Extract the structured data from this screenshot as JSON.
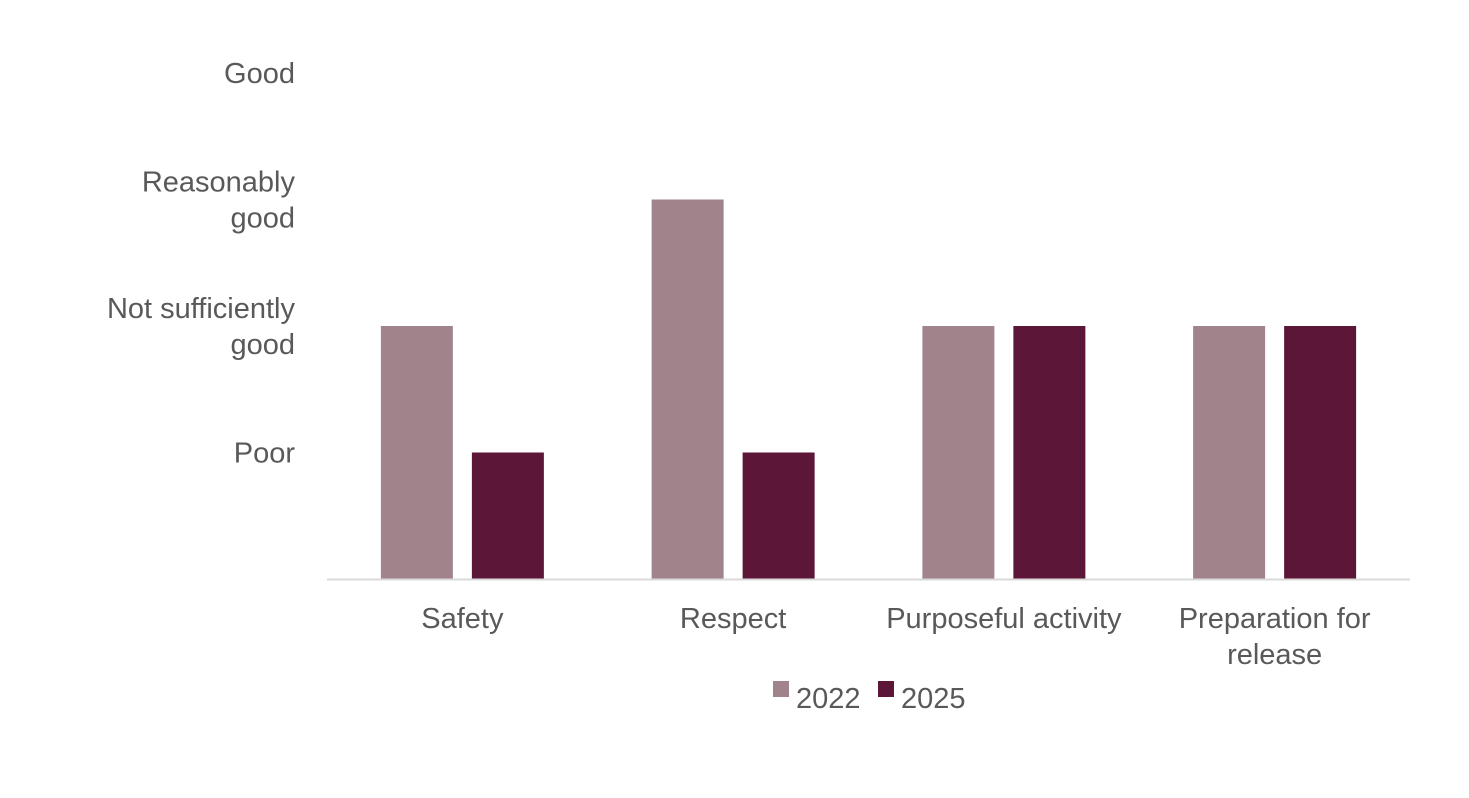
{
  "chart_data": {
    "type": "bar",
    "title": "",
    "xlabel": "",
    "ylabel": "",
    "categories": [
      "Safety",
      "Respect",
      "Purposeful activity",
      "Preparation for release"
    ],
    "category_lines": [
      [
        "Safety"
      ],
      [
        "Respect"
      ],
      [
        "Purposeful activity"
      ],
      [
        "Preparation for",
        "release"
      ]
    ],
    "y_levels": [
      "Poor",
      "Not sufficiently good",
      "Reasonably good",
      "Good"
    ],
    "y_level_lines": [
      [
        "Poor"
      ],
      [
        "Not sufficiently",
        "good"
      ],
      [
        "Reasonably",
        "good"
      ],
      [
        "Good"
      ]
    ],
    "ylim": [
      0,
      4
    ],
    "series": [
      {
        "name": "2022",
        "color": "#a0838b",
        "values": [
          2,
          3,
          2,
          2
        ]
      },
      {
        "name": "2025",
        "color": "#5c1637",
        "values": [
          1,
          1,
          2,
          2
        ]
      }
    ],
    "legend_position": "bottom",
    "grid": false,
    "axis_color": "#d9d9d9"
  }
}
